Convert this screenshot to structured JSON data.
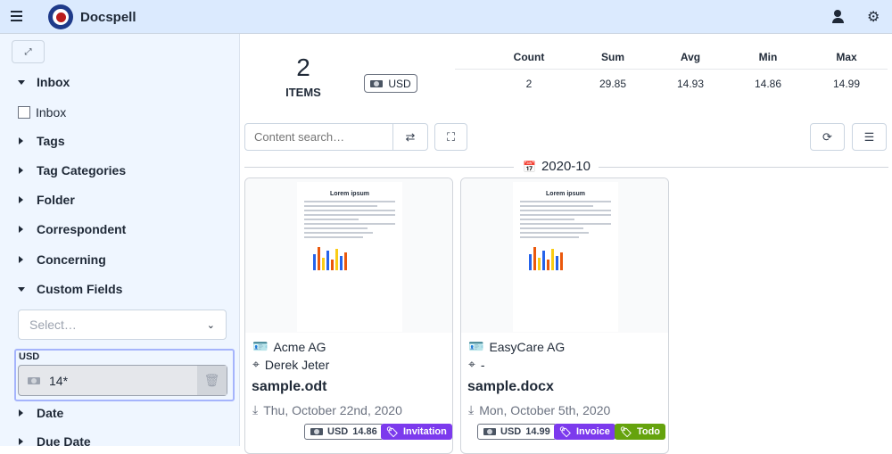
{
  "app": {
    "title": "Docspell"
  },
  "sidebar": {
    "sections": [
      {
        "label": "Inbox",
        "expanded": true
      },
      {
        "label": "Tags",
        "expanded": false
      },
      {
        "label": "Tag Categories",
        "expanded": false
      },
      {
        "label": "Folder",
        "expanded": false
      },
      {
        "label": "Correspondent",
        "expanded": false
      },
      {
        "label": "Concerning",
        "expanded": false
      },
      {
        "label": "Custom Fields",
        "expanded": true
      },
      {
        "label": "Date",
        "expanded": false
      },
      {
        "label": "Due Date",
        "expanded": false
      }
    ],
    "inbox_checkbox": "Inbox",
    "custom_field_select_placeholder": "Select…",
    "custom_field": {
      "label": "USD",
      "value": "14*"
    }
  },
  "stats": {
    "count": "2",
    "items_label": "ITEMS",
    "currency": "USD",
    "headers": [
      "Count",
      "Sum",
      "Avg",
      "Min",
      "Max"
    ],
    "values": [
      "2",
      "29.85",
      "14.93",
      "14.86",
      "14.99"
    ]
  },
  "search": {
    "placeholder": "Content search…"
  },
  "group": {
    "label": "2020-10"
  },
  "cards": [
    {
      "preview_title": "Lorem ipsum",
      "correspondent": "Acme AG",
      "concerning": "Derek Jeter",
      "name": "sample.odt",
      "date": "Thu, October 22nd, 2020",
      "money": {
        "currency": "USD",
        "amount": "14.86"
      },
      "tags": [
        {
          "label": "Invitation",
          "color": "#7c3aed"
        }
      ]
    },
    {
      "preview_title": "Lorem ipsum",
      "correspondent": "EasyCare AG",
      "concerning": "-",
      "name": "sample.docx",
      "date": "Mon, October 5th, 2020",
      "money": {
        "currency": "USD",
        "amount": "14.99"
      },
      "tags": [
        {
          "label": "Invoice",
          "color": "#7c3aed"
        },
        {
          "label": "Todo",
          "color": "#65a30d"
        }
      ]
    }
  ]
}
